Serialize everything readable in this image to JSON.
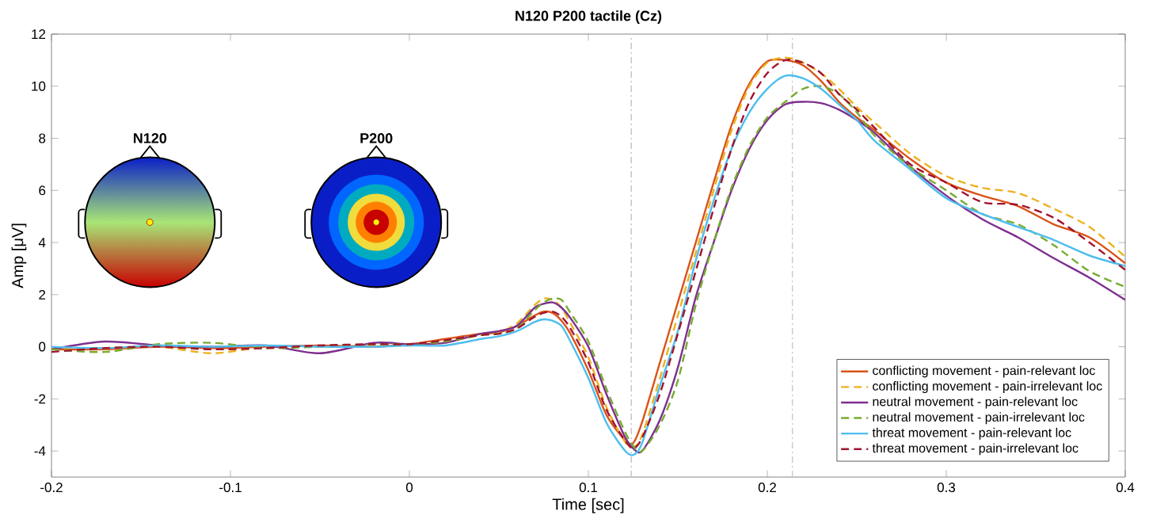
{
  "chart_data": {
    "type": "line",
    "title": "N120 P200 tactile (Cz)",
    "xlabel": "Time [sec]",
    "ylabel": "Amp [μV]",
    "annotations": [
      "N120",
      "P200"
    ],
    "x": [
      -0.2,
      -0.17,
      -0.14,
      -0.11,
      -0.08,
      -0.05,
      -0.02,
      0,
      0.02,
      0.04,
      0.05,
      0.06,
      0.07,
      0.075,
      0.08,
      0.085,
      0.09,
      0.1,
      0.11,
      0.12,
      0.125,
      0.13,
      0.14,
      0.15,
      0.16,
      0.17,
      0.18,
      0.19,
      0.2,
      0.21,
      0.22,
      0.23,
      0.24,
      0.25,
      0.26,
      0.28,
      0.3,
      0.32,
      0.34,
      0.36,
      0.38,
      0.4
    ],
    "series": [
      {
        "name": "conflicting movement - pain-relevant loc",
        "color": "#d95319",
        "line_style": "solid",
        "values": [
          -0.1,
          -0.1,
          0.0,
          -0.05,
          0.0,
          0.05,
          0.0,
          0.1,
          0.3,
          0.5,
          0.55,
          0.8,
          1.2,
          1.35,
          1.3,
          1.0,
          0.5,
          -0.9,
          -2.6,
          -3.55,
          -3.7,
          -2.9,
          -0.6,
          1.7,
          4.0,
          6.3,
          8.5,
          10.1,
          10.95,
          11.0,
          10.8,
          10.2,
          9.4,
          8.8,
          8.3,
          7.2,
          6.3,
          5.8,
          5.4,
          4.7,
          4.2,
          3.2
        ]
      },
      {
        "name": "conflicting movement - pain-irrelevant loc",
        "color": "#edb120",
        "line_style": "dashed",
        "values": [
          -0.05,
          -0.05,
          0.0,
          -0.25,
          0.0,
          0.0,
          0.05,
          0.05,
          0.2,
          0.45,
          0.55,
          0.9,
          1.6,
          1.85,
          1.8,
          1.5,
          0.9,
          -0.4,
          -2.3,
          -3.6,
          -3.85,
          -3.4,
          -1.2,
          1.2,
          3.6,
          6.0,
          8.3,
          10.0,
          10.9,
          11.1,
          10.9,
          10.5,
          9.9,
          9.2,
          8.6,
          7.4,
          6.55,
          6.1,
          5.9,
          5.3,
          4.6,
          3.45
        ]
      },
      {
        "name": "neutral movement - pain-relevant loc",
        "color": "#7e2f8e",
        "line_style": "solid",
        "values": [
          -0.1,
          0.2,
          0.05,
          0.0,
          0.05,
          -0.25,
          0.15,
          0.1,
          0.15,
          0.5,
          0.6,
          0.8,
          1.5,
          1.65,
          1.7,
          1.5,
          1.1,
          0.0,
          -1.8,
          -3.4,
          -3.9,
          -4.0,
          -2.8,
          -0.8,
          1.9,
          4.0,
          6.0,
          7.6,
          8.7,
          9.3,
          9.4,
          9.35,
          9.1,
          8.7,
          8.2,
          6.9,
          5.8,
          4.9,
          4.2,
          3.4,
          2.65,
          1.8
        ]
      },
      {
        "name": "neutral movement - pain-irrelevant loc",
        "color": "#77ac30",
        "line_style": "dashed",
        "values": [
          -0.1,
          -0.2,
          0.1,
          0.15,
          -0.05,
          0.0,
          0.1,
          0.1,
          0.2,
          0.45,
          0.5,
          0.7,
          1.4,
          1.7,
          1.85,
          1.8,
          1.3,
          0.2,
          -1.6,
          -3.2,
          -3.8,
          -4.0,
          -3.0,
          -1.3,
          1.6,
          4.0,
          6.1,
          7.7,
          8.8,
          9.4,
          9.9,
          10.0,
          9.7,
          9.0,
          8.1,
          6.9,
          6.0,
          5.1,
          4.7,
          3.9,
          2.9,
          2.3
        ]
      },
      {
        "name": "threat movement - pain-relevant loc",
        "color": "#4dbeee",
        "line_style": "solid",
        "values": [
          0.0,
          -0.05,
          0.05,
          0.0,
          0.05,
          0.0,
          0.0,
          0.05,
          0.05,
          0.3,
          0.4,
          0.6,
          0.95,
          1.05,
          1.0,
          0.8,
          0.2,
          -1.2,
          -2.9,
          -3.95,
          -4.15,
          -3.7,
          -1.5,
          0.6,
          3.3,
          5.6,
          7.6,
          9.0,
          9.9,
          10.4,
          10.3,
          9.9,
          9.3,
          8.7,
          7.9,
          6.8,
          5.7,
          5.1,
          4.6,
          4.1,
          3.5,
          3.1
        ]
      },
      {
        "name": "threat movement - pain-irrelevant loc",
        "color": "#a2142f",
        "line_style": "dashed",
        "values": [
          -0.2,
          -0.05,
          0.0,
          -0.1,
          -0.05,
          0.05,
          0.1,
          0.1,
          0.25,
          0.45,
          0.5,
          0.7,
          1.15,
          1.3,
          1.35,
          1.15,
          0.7,
          -0.6,
          -2.4,
          -3.55,
          -3.9,
          -3.5,
          -1.8,
          0.5,
          2.9,
          5.3,
          7.6,
          9.4,
          10.5,
          11.0,
          10.9,
          10.5,
          9.7,
          9.1,
          8.4,
          7.0,
          6.3,
          5.55,
          5.45,
          4.95,
          4.0,
          2.95
        ]
      }
    ],
    "xlim": [
      -0.2,
      0.4
    ],
    "ylim": [
      -5,
      12
    ],
    "xticks": [
      -0.2,
      -0.1,
      0,
      0.1,
      0.2,
      0.3,
      0.4
    ],
    "yticks": [
      -4,
      -2,
      0,
      2,
      4,
      6,
      8,
      10,
      12
    ],
    "ref_lines": [
      {
        "axis": "x",
        "value": 0.124,
        "color": "#c8c8c8",
        "line_style": "dashdot"
      },
      {
        "axis": "x",
        "value": 0.214,
        "color": "#c8c8c8",
        "line_style": "dashdot"
      }
    ],
    "legend": "bottom right",
    "grid": false,
    "marker": "none"
  }
}
